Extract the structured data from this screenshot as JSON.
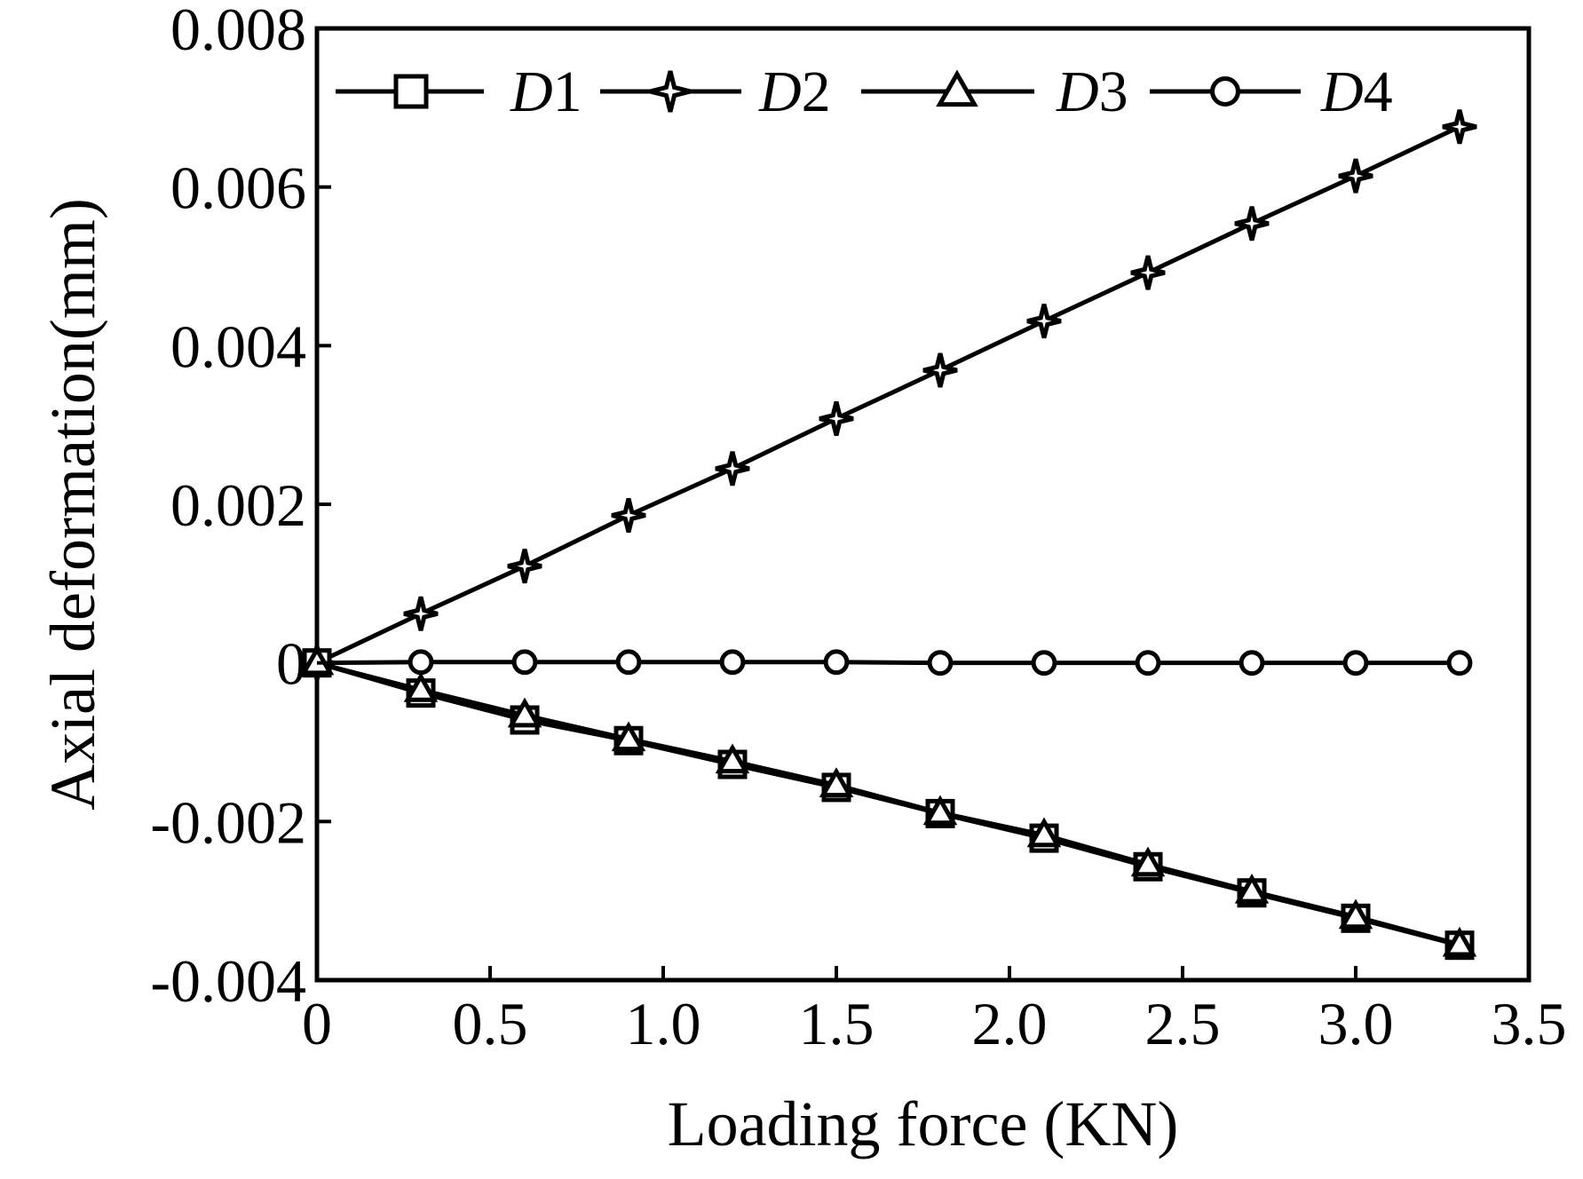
{
  "chart_data": {
    "type": "line",
    "title": "",
    "xlabel": "Loading force (KN)",
    "ylabel": "Axial deformation(mm)",
    "xlim": [
      0,
      3.5
    ],
    "ylim": [
      -0.004,
      0.008
    ],
    "xticks": [
      0,
      0.5,
      1.0,
      1.5,
      2.0,
      2.5,
      3.0,
      3.5
    ],
    "xtick_labels": [
      "0",
      "0.5",
      "1.0",
      "1.5",
      "2.0",
      "2.5",
      "3.0",
      "3.5"
    ],
    "yticks": [
      -0.004,
      -0.002,
      0,
      0.002,
      0.004,
      0.006,
      0.008
    ],
    "ytick_labels": [
      "-0.004",
      "-0.002",
      "0",
      "0.002",
      "0.004",
      "0.006",
      "0.008"
    ],
    "grid": false,
    "legend_position": "top",
    "series": [
      {
        "name": "D1",
        "marker": "square",
        "x": [
          0,
          0.3,
          0.6,
          0.9,
          1.2,
          1.5,
          1.8,
          2.1,
          2.4,
          2.7,
          3.0,
          3.3
        ],
        "y": [
          0,
          -0.00038,
          -0.00072,
          -0.00098,
          -0.00128,
          -0.00157,
          -0.0019,
          -0.00221,
          -0.00257,
          -0.0029,
          -0.00322,
          -0.00356
        ]
      },
      {
        "name": "D2",
        "marker": "star",
        "x": [
          0,
          0.3,
          0.6,
          0.9,
          1.2,
          1.5,
          1.8,
          2.1,
          2.4,
          2.7,
          3.0,
          3.3
        ],
        "y": [
          0,
          0.00062,
          0.00122,
          0.00186,
          0.00245,
          0.00308,
          0.00369,
          0.00431,
          0.00492,
          0.00554,
          0.00614,
          0.00676
        ]
      },
      {
        "name": "D3",
        "marker": "triangle",
        "x": [
          0,
          0.3,
          0.6,
          0.9,
          1.2,
          1.5,
          1.8,
          2.1,
          2.4,
          2.7,
          3.0,
          3.3
        ],
        "y": [
          0,
          -0.00034,
          -0.00066,
          -0.00096,
          -0.00124,
          -0.00154,
          -0.00189,
          -0.00217,
          -0.00254,
          -0.00288,
          -0.0032,
          -0.00355
        ]
      },
      {
        "name": "D4",
        "marker": "circle",
        "x": [
          0,
          0.3,
          0.6,
          0.9,
          1.2,
          1.5,
          1.8,
          2.1,
          2.4,
          2.7,
          3.0,
          3.3
        ],
        "y": [
          0,
          1e-05,
          1e-05,
          1e-05,
          1e-05,
          1e-05,
          0.0,
          0.0,
          0.0,
          0.0,
          0.0,
          0.0
        ]
      }
    ],
    "legend": [
      {
        "letter": "D",
        "number": "1"
      },
      {
        "letter": "D",
        "number": "2"
      },
      {
        "letter": "D",
        "number": "3"
      },
      {
        "letter": "D",
        "number": "4"
      }
    ],
    "colors": {
      "line": "#000000",
      "marker_fill": "#ffffff"
    }
  }
}
